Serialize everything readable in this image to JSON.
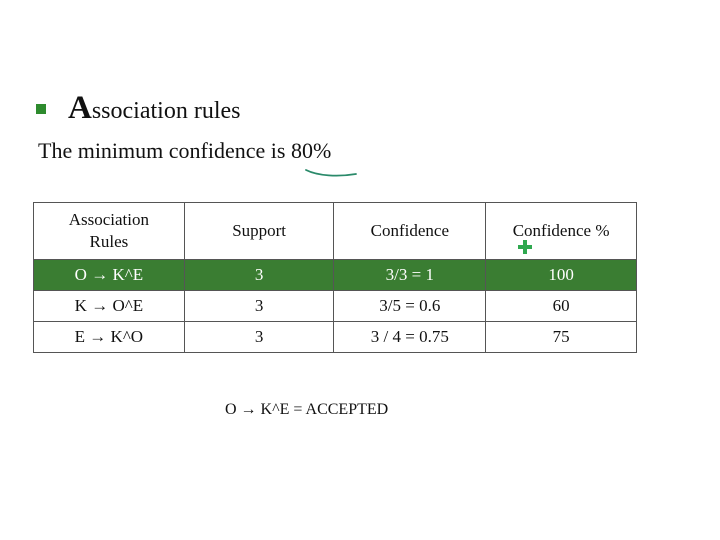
{
  "slide": {
    "heading_initial": "A",
    "heading_rest": "ssociation rules",
    "subtitle_prefix": "The minimum confidence is ",
    "subtitle_value": "80%",
    "table": {
      "headers": [
        "Association Rules",
        "Support",
        "Confidence",
        "Confidence %"
      ],
      "rows": [
        [
          "O → K^E",
          "3",
          "3/3 = 1",
          "100"
        ],
        [
          "K → O^E",
          "3",
          "3/5 = 0.6",
          "60"
        ],
        [
          "E → K^O",
          "3",
          "3 / 4 = 0.75",
          "75"
        ]
      ]
    },
    "result": "O → K^E = ACCEPTED"
  },
  "colors": {
    "accent": "#3a7d32",
    "bullet": "#2e8b2e",
    "pen_underline": "#2a8a6a",
    "cursor_plus": "#2fa84f"
  },
  "icons": [
    "bullet-square-icon",
    "plus-cursor-icon"
  ]
}
